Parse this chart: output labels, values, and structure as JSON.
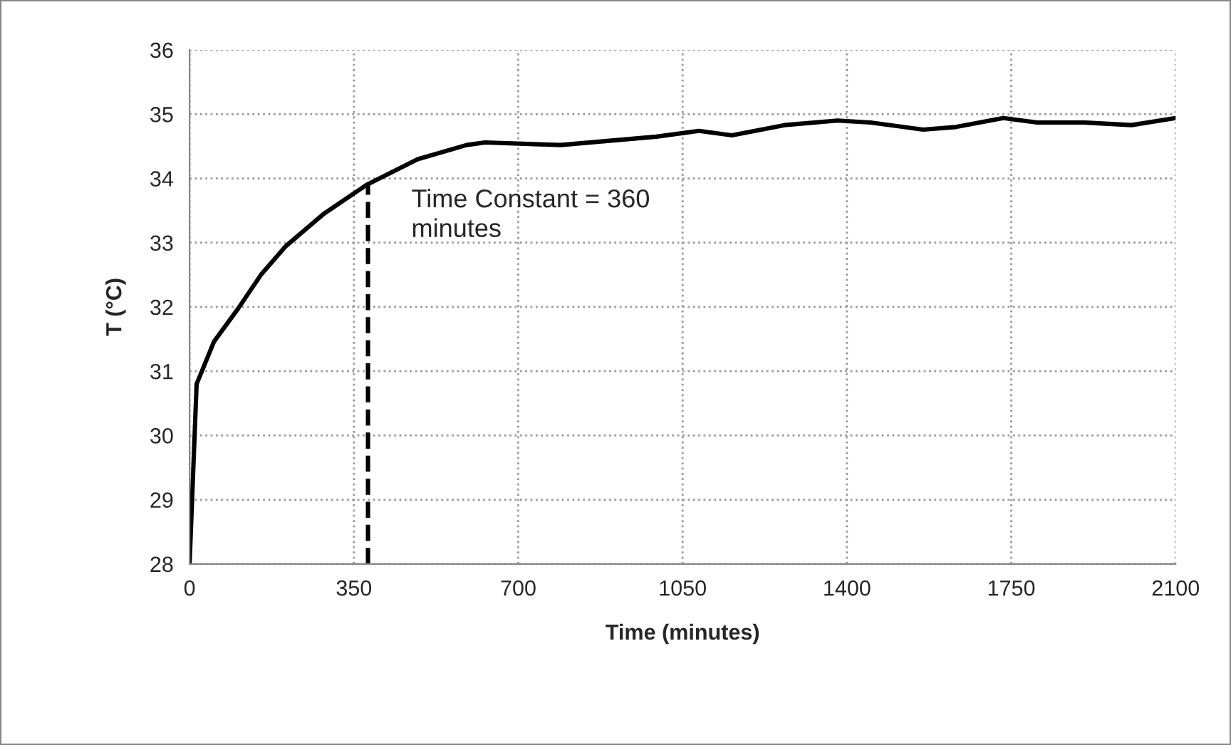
{
  "chart_data": {
    "type": "line",
    "xlabel": "Time (minutes)",
    "ylabel": "T (°C)",
    "x": [
      0,
      15,
      52,
      103,
      152,
      204,
      286,
      377,
      486,
      590,
      629,
      790,
      994,
      1085,
      1155,
      1267,
      1380,
      1450,
      1562,
      1632,
      1733,
      1805,
      1906,
      2006,
      2100
    ],
    "series": [
      {
        "color": "#000000",
        "values": [
          28,
          30.8,
          31.46,
          31.97,
          32.5,
          32.94,
          33.45,
          33.9,
          34.3,
          34.52,
          34.56,
          34.52,
          34.65,
          34.74,
          34.67,
          34.83,
          34.9,
          34.87,
          34.76,
          34.8,
          34.94,
          34.87,
          34.87,
          34.83,
          34.94
        ]
      }
    ],
    "xlim": [
      0,
      2100
    ],
    "xticks": [
      0,
      350,
      700,
      1050,
      1400,
      1750,
      2100
    ],
    "ylim": [
      28,
      36
    ],
    "yticks": [
      28,
      29,
      30,
      31,
      32,
      33,
      34,
      35,
      36
    ],
    "ref_lines": [
      {
        "axis": "x",
        "value": 380,
        "color": "#000000",
        "line_style": "dashed"
      }
    ],
    "annotations": [
      "Time Constant = 360\nminutes"
    ],
    "grid": true,
    "marker": "none",
    "line_style": "solid"
  }
}
